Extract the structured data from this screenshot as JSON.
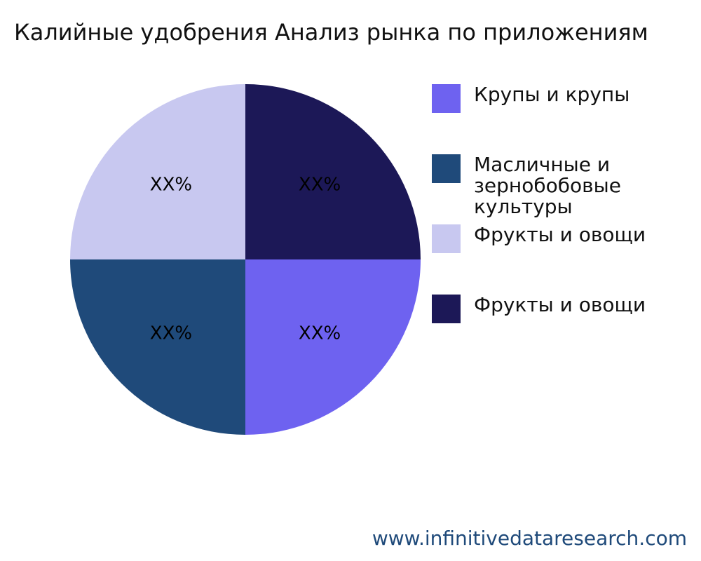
{
  "chart_data": {
    "type": "pie",
    "title": "Калийные удобрения Анализ рынка по приложениям",
    "categories": [
      "Крупы и крупы",
      "Масличные и зернобобовые культуры",
      "Фрукты и овощи",
      "Фрукты и овощи"
    ],
    "values": [
      25,
      25,
      25,
      25
    ],
    "value_labels": [
      "XX%",
      "XX%",
      "XX%",
      "XX%"
    ],
    "colors": [
      "#6e62f0",
      "#1f4a7a",
      "#c8c8f0",
      "#1c1857"
    ],
    "legend": "right",
    "source": "www.infinitivedataresearch.com"
  }
}
